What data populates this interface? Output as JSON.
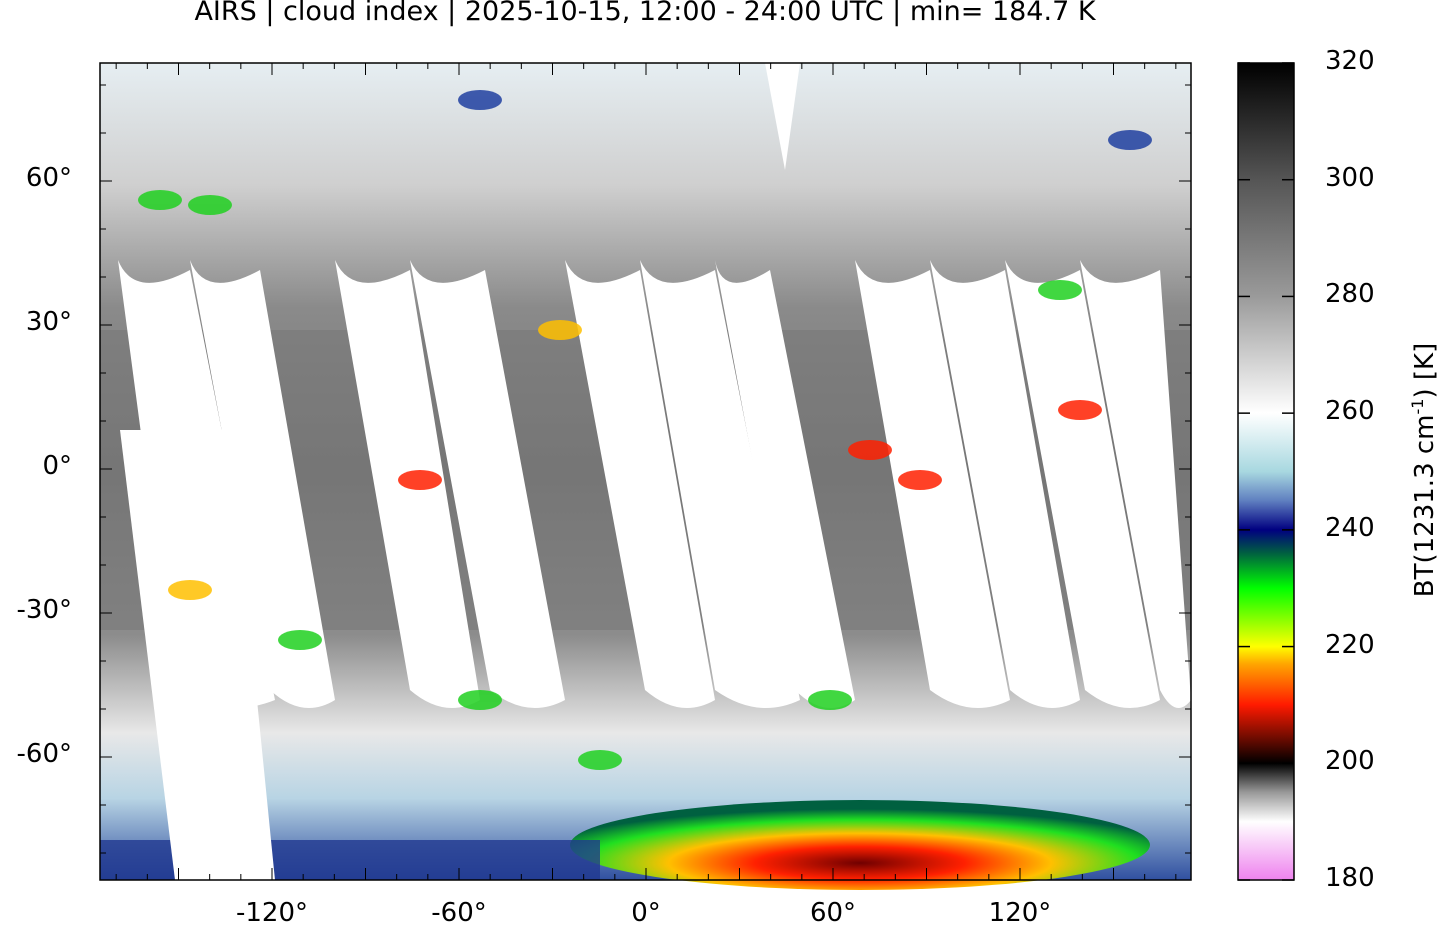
{
  "title": "AIRS | cloud index | 2025-10-15, 12:00 - 24:00 UTC | min= 184.7 K",
  "map": {
    "projection": "equirectangular",
    "lat_labels": [
      "60°",
      "30°",
      "0°",
      "-30°",
      "-60°"
    ],
    "lat_values": [
      60,
      30,
      0,
      -30,
      -60
    ],
    "lon_labels": [
      "-120°",
      "-60°",
      "0°",
      "60°",
      "120°"
    ],
    "lon_values": [
      -120,
      -60,
      0,
      60,
      120
    ]
  },
  "colorbar": {
    "label_main": "BT(1231.3 cm",
    "label_exp": "-1",
    "label_tail": ") [K]",
    "range": [
      180,
      320
    ],
    "tick_labels": [
      "320",
      "300",
      "280",
      "260",
      "240",
      "220",
      "200",
      "180"
    ],
    "tick_values": [
      320,
      300,
      280,
      260,
      240,
      220,
      200,
      180
    ],
    "colors": {
      "320": "#000000",
      "300": "#555555",
      "280": "#9a9a9a",
      "260": "#ffffff",
      "250": "#a8d8e0",
      "245": "#5f7fc0",
      "240": "#000080",
      "236": "#006040",
      "230": "#00ff00",
      "220": "#ffff00",
      "217": "#ffa500",
      "210": "#ff1a00",
      "200": "#000000",
      "195": "#999999",
      "190": "#ffffff",
      "180": "#ee82ee"
    }
  }
}
